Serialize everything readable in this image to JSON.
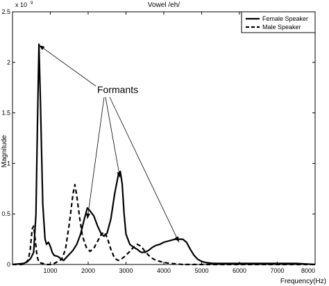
{
  "chart_data": {
    "type": "line",
    "title": "Vowel /eh/",
    "xlabel": "Frequency(Hz)",
    "ylabel": "Magnitude",
    "y_multiplier": "x 10",
    "y_exponent": "9",
    "xlim": [
      0,
      8000
    ],
    "ylim": [
      0,
      2.5
    ],
    "x_ticks": [
      1000,
      2000,
      3000,
      4000,
      5000,
      6000,
      7000,
      8000
    ],
    "x_tick_labels": [
      "1000",
      "2000",
      "3000",
      "4000",
      "5000",
      "6000",
      "7000",
      "8000"
    ],
    "y_ticks": [
      0,
      0.5,
      1,
      1.5,
      2,
      2.5
    ],
    "y_tick_labels": [
      "0",
      "0.5",
      "1",
      "1.5",
      "2",
      "2.5"
    ],
    "grid": false,
    "legend_position": "top-right",
    "annotation": {
      "text": "Formants",
      "points_to": [
        [
          700,
          2.17
        ],
        [
          1980,
          0.45
        ],
        [
          2840,
          0.86
        ],
        [
          4400,
          0.22
        ]
      ]
    },
    "series": [
      {
        "name": "Female Speaker",
        "style": "solid",
        "points": [
          [
            0,
            0
          ],
          [
            300,
            0.01
          ],
          [
            400,
            0.03
          ],
          [
            480,
            0.06
          ],
          [
            560,
            0.12
          ],
          [
            620,
            0.5
          ],
          [
            660,
            1.4
          ],
          [
            700,
            2.18
          ],
          [
            740,
            1.6
          ],
          [
            800,
            0.6
          ],
          [
            860,
            0.25
          ],
          [
            900,
            0.2
          ],
          [
            950,
            0.22
          ],
          [
            1000,
            0.18
          ],
          [
            1050,
            0.12
          ],
          [
            1100,
            0.09
          ],
          [
            1200,
            0.08
          ],
          [
            1300,
            0.05
          ],
          [
            1350,
            0.04
          ],
          [
            1400,
            0.06
          ],
          [
            1500,
            0.1
          ],
          [
            1600,
            0.14
          ],
          [
            1700,
            0.2
          ],
          [
            1800,
            0.3
          ],
          [
            1900,
            0.45
          ],
          [
            1980,
            0.56
          ],
          [
            2050,
            0.53
          ],
          [
            2150,
            0.48
          ],
          [
            2250,
            0.38
          ],
          [
            2350,
            0.3
          ],
          [
            2420,
            0.28
          ],
          [
            2500,
            0.31
          ],
          [
            2600,
            0.45
          ],
          [
            2700,
            0.7
          ],
          [
            2800,
            0.89
          ],
          [
            2850,
            0.92
          ],
          [
            2900,
            0.8
          ],
          [
            2950,
            0.5
          ],
          [
            3000,
            0.3
          ],
          [
            3100,
            0.2
          ],
          [
            3200,
            0.17
          ],
          [
            3300,
            0.15
          ],
          [
            3400,
            0.12
          ],
          [
            3500,
            0.12
          ],
          [
            3600,
            0.14
          ],
          [
            3700,
            0.17
          ],
          [
            3800,
            0.19
          ],
          [
            3900,
            0.2
          ],
          [
            4000,
            0.22
          ],
          [
            4100,
            0.23
          ],
          [
            4200,
            0.24
          ],
          [
            4300,
            0.25
          ],
          [
            4400,
            0.25
          ],
          [
            4500,
            0.25
          ],
          [
            4600,
            0.22
          ],
          [
            4700,
            0.15
          ],
          [
            4800,
            0.09
          ],
          [
            4900,
            0.05
          ],
          [
            5000,
            0.03
          ],
          [
            5100,
            0.02
          ],
          [
            5300,
            0.01
          ],
          [
            5600,
            0.01
          ],
          [
            6000,
            0.01
          ],
          [
            6500,
            0.01
          ],
          [
            7000,
            0.01
          ],
          [
            7500,
            0.01
          ],
          [
            8000,
            0.0
          ]
        ]
      },
      {
        "name": "Male Speaker",
        "style": "dashed",
        "points": [
          [
            0,
            0
          ],
          [
            250,
            0.0
          ],
          [
            350,
            0.01
          ],
          [
            420,
            0.05
          ],
          [
            470,
            0.15
          ],
          [
            520,
            0.35
          ],
          [
            560,
            0.38
          ],
          [
            600,
            0.25
          ],
          [
            650,
            0.08
          ],
          [
            700,
            0.02
          ],
          [
            800,
            0.01
          ],
          [
            900,
            0.0
          ],
          [
            1000,
            0.0
          ],
          [
            1100,
            0.01
          ],
          [
            1200,
            0.03
          ],
          [
            1300,
            0.05
          ],
          [
            1400,
            0.15
          ],
          [
            1500,
            0.4
          ],
          [
            1600,
            0.7
          ],
          [
            1650,
            0.79
          ],
          [
            1700,
            0.68
          ],
          [
            1780,
            0.45
          ],
          [
            1850,
            0.28
          ],
          [
            1950,
            0.17
          ],
          [
            2050,
            0.13
          ],
          [
            2150,
            0.16
          ],
          [
            2250,
            0.23
          ],
          [
            2350,
            0.3
          ],
          [
            2420,
            0.32
          ],
          [
            2500,
            0.27
          ],
          [
            2600,
            0.15
          ],
          [
            2700,
            0.06
          ],
          [
            2800,
            0.04
          ],
          [
            2900,
            0.06
          ],
          [
            3000,
            0.09
          ],
          [
            3100,
            0.13
          ],
          [
            3200,
            0.17
          ],
          [
            3300,
            0.2
          ],
          [
            3400,
            0.18
          ],
          [
            3500,
            0.13
          ],
          [
            3600,
            0.09
          ],
          [
            3700,
            0.06
          ],
          [
            3800,
            0.04
          ],
          [
            3900,
            0.03
          ],
          [
            4000,
            0.02
          ],
          [
            4200,
            0.01
          ],
          [
            4500,
            0.0
          ],
          [
            5000,
            0.0
          ],
          [
            6000,
            0.0
          ],
          [
            7000,
            0.0
          ],
          [
            8000,
            0.0
          ]
        ]
      }
    ]
  }
}
